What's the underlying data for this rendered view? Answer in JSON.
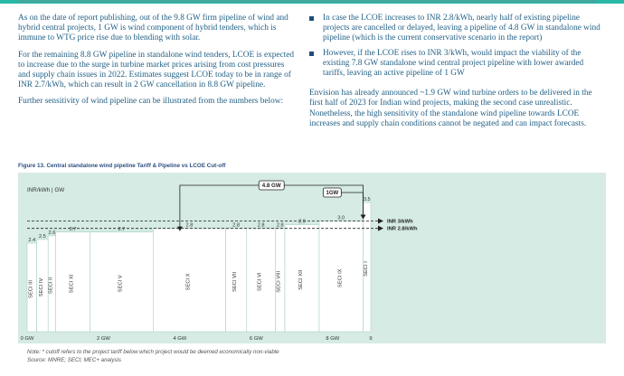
{
  "paragraphs_left": [
    "As on the date of report publishing, out of the 9.8 GW firm pipeline of wind and hybrid central projects, 1 GW is wind component of hybrid tenders, which is immune to WTG price rise due to blending with solar.",
    "For the remaining 8.8 GW pipeline in standalone wind tenders, LCOE is expected to increase due to the surge in turbine market prices arising from cost pressures and supply chain issues in 2022. Estimates suggest LCOE today to be in range of INR 2.7/kWh, which can result in 2 GW cancellation in 8.8 GW pipeline.",
    "Further sensitivity of wind pipeline can be illustrated from the numbers below:"
  ],
  "bullets_right": [
    "In case the LCOE increases to INR 2.8/kWh, nearly half of existing pipeline projects are cancelled or delayed, leaving a pipeline of 4.8 GW in standalone wind pipeline (which is the current conservative scenario in the report)",
    "However, if the LCOE rises to INR 3/kWh, would impact the viability of the existing 7.8 GW standalone wind central project pipeline with lower awarded tariffs, leaving an active pipeline of 1 GW"
  ],
  "paragraph_right": "Envision has already announced ~1.9 GW wind turbine orders to be delivered in the first half of 2023 for Indian wind projects, making the second case unrealistic. Nonetheless, the high sensitivity of the standalone wind pipeline towards LCOE increases and supply chain conditions cannot be negated and can impact forecasts.",
  "figure_title": "Figure 13. Central standalone wind pipeline Tariff & Pipeline vs LCOE Cut-off",
  "note": "Note: * cutoff refers to the project tariff below which project would be deemed economically non-viable",
  "source": "Source: MNRE; SECI; MEC+ analysis",
  "colors": {
    "bar": "#ffffff",
    "chart_bg": "#d5ebe4",
    "accent": "#2ab8a6",
    "text": "#1f5e84",
    "dark": "#222222"
  },
  "chart_data": {
    "type": "bar",
    "y_axis_label": "INR/kWh | GW",
    "x_ticks": [
      {
        "label": "0 GW",
        "x": 0
      },
      {
        "label": "2 GW",
        "x": 2
      },
      {
        "label": "4 GW",
        "x": 4
      },
      {
        "label": "6 GW",
        "x": 6
      },
      {
        "label": "8 GW",
        "x": 8
      },
      {
        "label": "9",
        "x": 9
      }
    ],
    "xlim": [
      0,
      9
    ],
    "ylim": [
      0,
      3.6
    ],
    "bars": [
      {
        "name": "SECI III",
        "start": 0,
        "end": 0.25,
        "tariff": 2.4,
        "label": "2.4"
      },
      {
        "name": "SECI IV",
        "start": 0.25,
        "end": 0.55,
        "tariff": 2.5,
        "label": "2.5"
      },
      {
        "name": "SECI II",
        "start": 0.55,
        "end": 0.75,
        "tariff": 2.6,
        "label": "2.6"
      },
      {
        "name": "SECI XI",
        "start": 0.75,
        "end": 1.65,
        "tariff": 2.7,
        "label": "2.7"
      },
      {
        "name": "SECI V",
        "start": 1.65,
        "end": 3.3,
        "tariff": 2.7,
        "label": "2.7"
      },
      {
        "name": "SECI X",
        "start": 3.3,
        "end": 5.2,
        "tariff": 2.8,
        "label": "2.8"
      },
      {
        "name": "SECI VII",
        "start": 5.2,
        "end": 5.75,
        "tariff": 2.8,
        "label": "2.8"
      },
      {
        "name": "SECI VI",
        "start": 5.75,
        "end": 6.5,
        "tariff": 2.8,
        "label": "2.8"
      },
      {
        "name": "SECI VIII",
        "start": 6.5,
        "end": 6.75,
        "tariff": 2.8,
        "label": "2.8"
      },
      {
        "name": "SECI XII",
        "start": 6.75,
        "end": 7.65,
        "tariff": 2.9,
        "label": "2.9"
      },
      {
        "name": "SECI IX",
        "start": 7.65,
        "end": 8.8,
        "tariff": 3.0,
        "label": "3.0"
      },
      {
        "name": "SECI I",
        "start": 8.8,
        "end": 9.0,
        "tariff": 3.5,
        "label": "3.5"
      }
    ],
    "cutoffs": [
      {
        "label": "INR 3/kWh",
        "y": 3.0
      },
      {
        "label": "INR 2.8/kWh",
        "y": 2.8
      }
    ],
    "annotations": [
      {
        "label": "4.8 GW",
        "from": 4.0,
        "to": 8.8
      },
      {
        "label": "1GW",
        "from": 7.8,
        "to": 8.8
      }
    ]
  }
}
